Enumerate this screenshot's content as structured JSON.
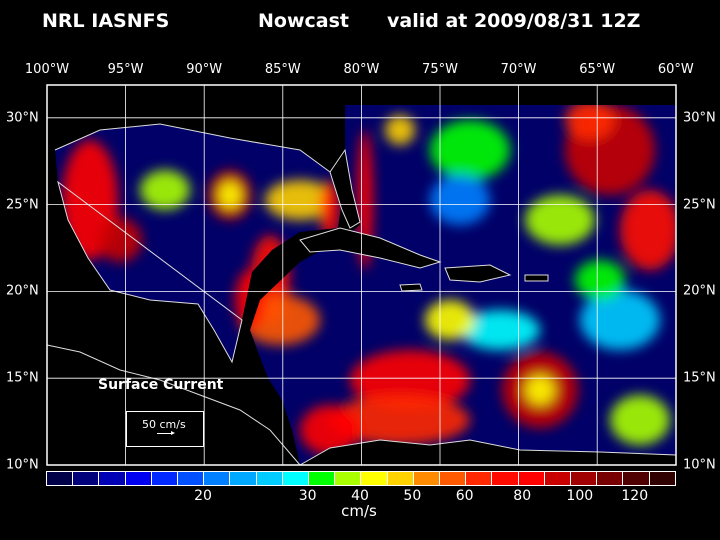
{
  "title": {
    "left": "NRL IASNFS",
    "middle": "Nowcast",
    "right": "valid at 2009/08/31 12Z"
  },
  "lon_labels": [
    "100°W",
    "95°W",
    "90°W",
    "85°W",
    "80°W",
    "75°W",
    "70°W",
    "65°W",
    "60°W"
  ],
  "lat_labels": [
    "30°N",
    "25°N",
    "20°N",
    "15°N",
    "10°N"
  ],
  "legend": {
    "title": "Surface Current",
    "ref_label": "50 cm/s"
  },
  "colorbar": {
    "units": "cm/s",
    "colors": [
      "#000048",
      "#00007a",
      "#0000b4",
      "#0000f0",
      "#0028ff",
      "#0050ff",
      "#0080ff",
      "#00a8ff",
      "#00ccff",
      "#00ffff",
      "#00ff00",
      "#aaff00",
      "#ffff00",
      "#ffd200",
      "#ff8c00",
      "#ff5a00",
      "#ff2800",
      "#ff0a00",
      "#ff0000",
      "#c80000",
      "#a00000",
      "#780000",
      "#500000",
      "#300000"
    ],
    "labels": [
      {
        "text": "20",
        "index": 6
      },
      {
        "text": "30",
        "index": 10
      },
      {
        "text": "40",
        "index": 12
      },
      {
        "text": "50",
        "index": 14
      },
      {
        "text": "60",
        "index": 16
      },
      {
        "text": "80",
        "index": 18.2
      },
      {
        "text": "100",
        "index": 20.4
      },
      {
        "text": "120",
        "index": 22.5
      }
    ]
  }
}
